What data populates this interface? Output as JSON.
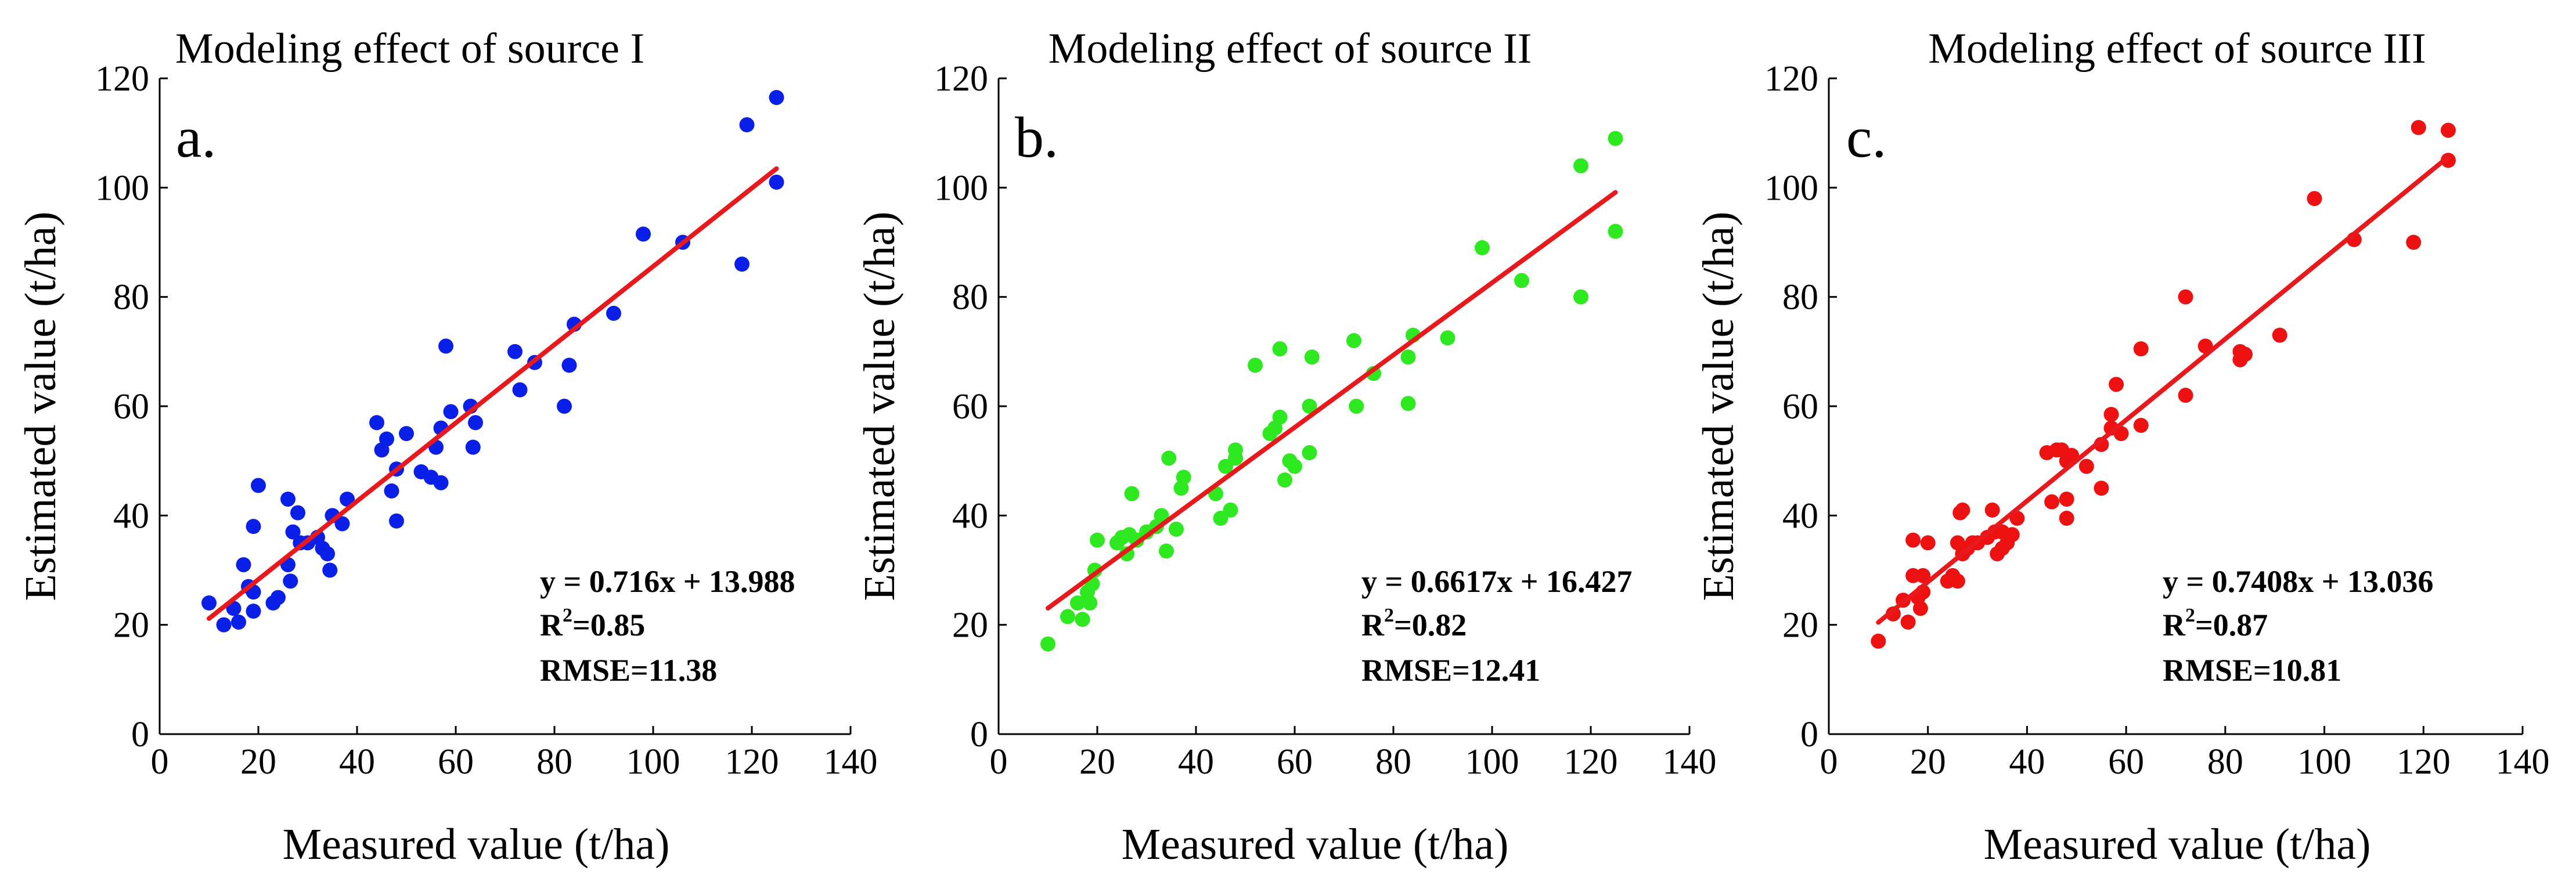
{
  "chart_data": [
    {
      "type": "scatter",
      "panel_label": "a.",
      "title": "Modeling effect of source I",
      "xlabel": "Measured value (t/ha)",
      "ylabel": "Estimated value (t/ha)",
      "xlim": [
        0,
        140
      ],
      "ylim": [
        0,
        120
      ],
      "xticks": [
        0,
        20,
        40,
        60,
        80,
        100,
        120,
        140
      ],
      "yticks": [
        0,
        20,
        40,
        60,
        80,
        100,
        120
      ],
      "point_color": "#0a1fe8",
      "line_color": "#e8191c",
      "equation": "y = 0.716x + 13.988",
      "r2_prefix": "R",
      "r2_suffix": "=0.85",
      "rmse": "RMSE=11.38",
      "fit": {
        "slope": 0.716,
        "intercept": 13.988,
        "x_range": [
          10,
          125
        ]
      },
      "points": [
        [
          10,
          24
        ],
        [
          13,
          20
        ],
        [
          15,
          23
        ],
        [
          16,
          20.5
        ],
        [
          17,
          31
        ],
        [
          18,
          27
        ],
        [
          19,
          26
        ],
        [
          19,
          38
        ],
        [
          19,
          22.5
        ],
        [
          20,
          45.5
        ],
        [
          23,
          24
        ],
        [
          24,
          25
        ],
        [
          26,
          43
        ],
        [
          26,
          31
        ],
        [
          26.5,
          28
        ],
        [
          27,
          37
        ],
        [
          28,
          40.5
        ],
        [
          28.5,
          35
        ],
        [
          30,
          35
        ],
        [
          32,
          36
        ],
        [
          33,
          34
        ],
        [
          34,
          33
        ],
        [
          34.5,
          30
        ],
        [
          35,
          40
        ],
        [
          37,
          38.5
        ],
        [
          38,
          43
        ],
        [
          44,
          57
        ],
        [
          45,
          52
        ],
        [
          46,
          54
        ],
        [
          47,
          44.5
        ],
        [
          48,
          48.5
        ],
        [
          48,
          39
        ],
        [
          50,
          55
        ],
        [
          53,
          48
        ],
        [
          55,
          47
        ],
        [
          56,
          52.5
        ],
        [
          57,
          46
        ],
        [
          57,
          56
        ],
        [
          58,
          71
        ],
        [
          59,
          59
        ],
        [
          63,
          60
        ],
        [
          63.5,
          52.5
        ],
        [
          64,
          57
        ],
        [
          72,
          70
        ],
        [
          73,
          63
        ],
        [
          76,
          68
        ],
        [
          82,
          60
        ],
        [
          83,
          67.5
        ],
        [
          84,
          75
        ],
        [
          92,
          77
        ],
        [
          98,
          91.5
        ],
        [
          106,
          90
        ],
        [
          118,
          86
        ],
        [
          119,
          111.5
        ],
        [
          125,
          101
        ],
        [
          125,
          116.5
        ]
      ]
    },
    {
      "type": "scatter",
      "panel_label": "b.",
      "title": "Modeling effect of source II",
      "xlabel": "Measured value (t/ha)",
      "ylabel": "Estimated value (t/ha)",
      "xlim": [
        0,
        140
      ],
      "ylim": [
        0,
        120
      ],
      "xticks": [
        0,
        20,
        40,
        60,
        80,
        100,
        120,
        140
      ],
      "yticks": [
        0,
        20,
        40,
        60,
        80,
        100,
        120
      ],
      "point_color": "#2ee820",
      "line_color": "#e8191c",
      "equation": "y = 0.6617x + 16.427",
      "r2_prefix": "R",
      "r2_suffix": "=0.82",
      "rmse": "RMSE=12.41",
      "fit": {
        "slope": 0.6617,
        "intercept": 16.427,
        "x_range": [
          10,
          125
        ]
      },
      "points": [
        [
          10,
          16.5
        ],
        [
          14,
          21.5
        ],
        [
          16,
          24
        ],
        [
          17,
          21
        ],
        [
          18,
          26
        ],
        [
          18.5,
          24
        ],
        [
          19,
          27.5
        ],
        [
          19.5,
          30
        ],
        [
          20,
          35.5
        ],
        [
          24,
          35
        ],
        [
          25,
          36
        ],
        [
          26,
          33
        ],
        [
          26.5,
          36.5
        ],
        [
          27,
          44
        ],
        [
          28,
          35.5
        ],
        [
          30,
          37
        ],
        [
          32,
          38
        ],
        [
          33,
          40
        ],
        [
          34,
          33.5
        ],
        [
          34.5,
          50.5
        ],
        [
          36,
          37.5
        ],
        [
          37,
          45
        ],
        [
          37.5,
          47
        ],
        [
          44,
          44
        ],
        [
          45,
          39.5
        ],
        [
          46,
          49
        ],
        [
          47,
          41
        ],
        [
          48,
          50.5
        ],
        [
          48,
          52
        ],
        [
          52,
          67.5
        ],
        [
          55,
          55
        ],
        [
          56,
          56
        ],
        [
          57,
          58
        ],
        [
          57,
          70.5
        ],
        [
          58,
          46.5
        ],
        [
          59,
          50
        ],
        [
          60,
          49
        ],
        [
          63,
          60
        ],
        [
          63,
          51.5
        ],
        [
          63.5,
          69
        ],
        [
          72,
          72
        ],
        [
          72.5,
          60
        ],
        [
          76,
          66
        ],
        [
          83,
          60.5
        ],
        [
          83,
          69
        ],
        [
          84,
          73
        ],
        [
          91,
          72.5
        ],
        [
          98,
          89
        ],
        [
          106,
          83
        ],
        [
          118,
          80
        ],
        [
          118,
          104
        ],
        [
          125,
          92
        ],
        [
          125,
          109
        ]
      ]
    },
    {
      "type": "scatter",
      "panel_label": "c.",
      "title": "Modeling effect of source III",
      "xlabel": "Measured value (t/ha)",
      "ylabel": "Estimated value (t/ha)",
      "xlim": [
        0,
        140
      ],
      "ylim": [
        0,
        120
      ],
      "xticks": [
        0,
        20,
        40,
        60,
        80,
        100,
        120,
        140
      ],
      "yticks": [
        0,
        20,
        40,
        60,
        80,
        100,
        120
      ],
      "point_color": "#ee1111",
      "line_color": "#e8191c",
      "equation": "y = 0.7408x + 13.036",
      "r2_prefix": "R",
      "r2_suffix": "=0.87",
      "rmse": "RMSE=10.81",
      "fit": {
        "slope": 0.7408,
        "intercept": 13.036,
        "x_range": [
          10,
          125
        ]
      },
      "points": [
        [
          10,
          17
        ],
        [
          13,
          22
        ],
        [
          15,
          24.5
        ],
        [
          16,
          20.5
        ],
        [
          17,
          35.5
        ],
        [
          17,
          29
        ],
        [
          18,
          25
        ],
        [
          18.5,
          23
        ],
        [
          19,
          26
        ],
        [
          19,
          29
        ],
        [
          20,
          35
        ],
        [
          24,
          28
        ],
        [
          25,
          29
        ],
        [
          26,
          28
        ],
        [
          26,
          35
        ],
        [
          26.5,
          40.5
        ],
        [
          27,
          33
        ],
        [
          27,
          41
        ],
        [
          28,
          34
        ],
        [
          29,
          35
        ],
        [
          30,
          35
        ],
        [
          32,
          36
        ],
        [
          33,
          41
        ],
        [
          33.5,
          37
        ],
        [
          34,
          33
        ],
        [
          35,
          34
        ],
        [
          35,
          37
        ],
        [
          36,
          35
        ],
        [
          37,
          36.5
        ],
        [
          38,
          39.5
        ],
        [
          44,
          51.5
        ],
        [
          45,
          42.5
        ],
        [
          46,
          52
        ],
        [
          47,
          52
        ],
        [
          48,
          50
        ],
        [
          48,
          43
        ],
        [
          48,
          39.5
        ],
        [
          49,
          51
        ],
        [
          52,
          49
        ],
        [
          55,
          45
        ],
        [
          55,
          53
        ],
        [
          57,
          56
        ],
        [
          57,
          58.5
        ],
        [
          58,
          64
        ],
        [
          59,
          55
        ],
        [
          63,
          56.5
        ],
        [
          63,
          70.5
        ],
        [
          72,
          80
        ],
        [
          72,
          62
        ],
        [
          76,
          71
        ],
        [
          83,
          68.5
        ],
        [
          83,
          70
        ],
        [
          84,
          69.5
        ],
        [
          91,
          73
        ],
        [
          98,
          98
        ],
        [
          106,
          90.5
        ],
        [
          118,
          90
        ],
        [
          119,
          111
        ],
        [
          125,
          105
        ],
        [
          125,
          110.5
        ]
      ]
    }
  ]
}
